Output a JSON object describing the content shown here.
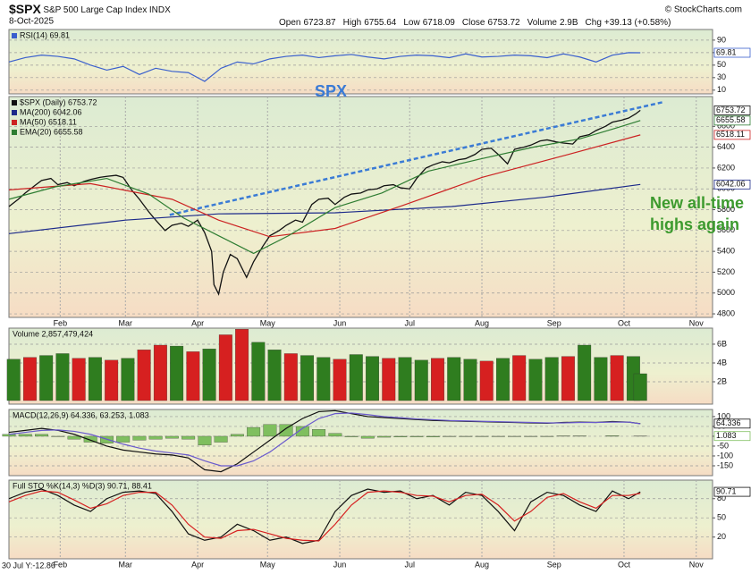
{
  "header": {
    "symbol": "$SPX",
    "name": "S&P 500 Large Cap Index",
    "exchange": "INDX",
    "date": "8-Oct-2025",
    "source": "© StockCharts.com",
    "quote": [
      {
        "label": "Open",
        "value": 6723.87
      },
      {
        "label": "High",
        "value": 6755.64
      },
      {
        "label": "Low",
        "value": 6718.09
      },
      {
        "label": "Close",
        "value": 6753.72
      },
      {
        "label": "Volume",
        "value": "2.9B"
      },
      {
        "label": "Chg",
        "value": "+39.13 (+0.58%)"
      }
    ],
    "footer": "30 Jul Y:-12.86"
  },
  "chart_data": [
    {
      "type": "line",
      "ylim": [
        4,
        107
      ],
      "yticks": [
        10,
        30,
        50,
        70,
        90
      ],
      "series": [
        {
          "name": "RSI(14) 69.81",
          "color": "#3a5fcd",
          "tag": true,
          "x": [
            10,
            17,
            24,
            31,
            38,
            45,
            52,
            59,
            66,
            73,
            80,
            87,
            94,
            101,
            108,
            115,
            122,
            129,
            136,
            143,
            150,
            157,
            164,
            171,
            178,
            185,
            192,
            199,
            206,
            213,
            220,
            227,
            234,
            241,
            248,
            255,
            262,
            269,
            276,
            281
          ],
          "values": [
            55,
            62,
            66,
            64,
            60,
            50,
            42,
            48,
            35,
            45,
            40,
            38,
            24,
            45,
            55,
            52,
            60,
            64,
            66,
            62,
            65,
            67,
            63,
            60,
            64,
            66,
            65,
            62,
            68,
            63,
            64,
            66,
            65,
            62,
            68,
            63,
            55,
            66,
            70,
            69.81
          ]
        }
      ]
    },
    {
      "type": "line",
      "ylim": [
        4766,
        6886
      ],
      "yticks": [
        4800,
        5000,
        5200,
        5400,
        5600,
        5800,
        6000,
        6200,
        6400,
        6600
      ],
      "xlim": [
        10,
        312
      ],
      "xticks": [
        {
          "value": 32,
          "label": "Feb"
        },
        {
          "value": 60,
          "label": "Mar"
        },
        {
          "value": 91,
          "label": "Apr"
        },
        {
          "value": 121,
          "label": "May"
        },
        {
          "value": 152,
          "label": "Jun"
        },
        {
          "value": 182,
          "label": "Jul"
        },
        {
          "value": 213,
          "label": "Aug"
        },
        {
          "value": 244,
          "label": "Sep"
        },
        {
          "value": 274,
          "label": "Oct"
        },
        {
          "value": 305,
          "label": "Nov"
        }
      ],
      "annotations": [
        "SPX",
        "New all-time",
        "highs again"
      ],
      "trendline": {
        "color": "#3a7bd5",
        "x": [
          79,
          291
        ],
        "values": [
          5750,
          6834
        ]
      },
      "series": [
        {
          "name": "$SPX (Daily) 6753.72",
          "color": "#111111",
          "tag": true,
          "x": [
            10,
            14,
            17,
            21,
            24,
            28,
            31,
            35,
            38,
            42,
            45,
            49,
            52,
            56,
            59,
            63,
            66,
            70,
            73,
            77,
            80,
            84,
            87,
            91,
            94,
            97,
            98,
            100,
            102,
            105,
            108,
            112,
            115,
            119,
            122,
            126,
            129,
            133,
            136,
            140,
            143,
            147,
            150,
            154,
            157,
            161,
            164,
            168,
            171,
            175,
            178,
            182,
            185,
            189,
            192,
            196,
            199,
            203,
            206,
            210,
            213,
            217,
            220,
            224,
            227,
            231,
            234,
            238,
            241,
            245,
            248,
            252,
            255,
            259,
            262,
            266,
            269,
            273,
            276,
            279,
            281
          ],
          "values": [
            5830,
            5900,
            5960,
            6030,
            6080,
            6100,
            6040,
            6060,
            6030,
            6070,
            6090,
            6110,
            6120,
            6130,
            6110,
            5980,
            5900,
            5780,
            5700,
            5600,
            5650,
            5670,
            5640,
            5700,
            5580,
            5400,
            5080,
            4990,
            5200,
            5370,
            5330,
            5150,
            5300,
            5450,
            5550,
            5600,
            5650,
            5700,
            5680,
            5850,
            5900,
            5910,
            5850,
            5920,
            5950,
            5960,
            5990,
            6000,
            6030,
            6040,
            6010,
            6000,
            6100,
            6200,
            6230,
            6260,
            6250,
            6280,
            6290,
            6330,
            6380,
            6390,
            6330,
            6240,
            6380,
            6400,
            6420,
            6460,
            6470,
            6450,
            6440,
            6430,
            6500,
            6520,
            6560,
            6600,
            6640,
            6660,
            6680,
            6720,
            6753.72
          ]
        },
        {
          "name": "MA(200) 6042.06",
          "color": "#1c2a8a",
          "tag": true,
          "x": [
            10,
            60,
            100,
            150,
            200,
            240,
            281
          ],
          "values": [
            5570,
            5700,
            5760,
            5770,
            5830,
            5920,
            6042.06
          ]
        },
        {
          "name": "MA(50) 6518.11",
          "color": "#cc2222",
          "tag": true,
          "x": [
            10,
            45,
            80,
            100,
            122,
            150,
            179,
            213,
            250,
            281
          ],
          "values": [
            5990,
            6050,
            5900,
            5700,
            5540,
            5620,
            5840,
            6110,
            6330,
            6518.11
          ]
        },
        {
          "name": "EMA(20) 6655.58",
          "color": "#2e7d32",
          "tag": true,
          "x": [
            10,
            30,
            52,
            70,
            85,
            100,
            115,
            130,
            150,
            170,
            190,
            213,
            235,
            255,
            270,
            281
          ],
          "values": [
            5900,
            6020,
            6100,
            5950,
            5720,
            5550,
            5380,
            5550,
            5820,
            5960,
            6170,
            6290,
            6400,
            6480,
            6580,
            6655.58
          ]
        }
      ]
    },
    {
      "type": "bar",
      "title": "Volume 2,857,479,424",
      "ylim": [
        -380000000,
        7710000000
      ],
      "yticks": [
        {
          "value": 2000000000,
          "label": "2B"
        },
        {
          "value": 4000000000,
          "label": "4B"
        },
        {
          "value": 6000000000,
          "label": "6B"
        }
      ],
      "series": [
        {
          "x": [
            12,
            19,
            26,
            33,
            40,
            47,
            54,
            61,
            68,
            75,
            82,
            89,
            96,
            103,
            110,
            117,
            124,
            131,
            138,
            145,
            152,
            159,
            166,
            173,
            180,
            187,
            194,
            201,
            208,
            215,
            222,
            229,
            236,
            243,
            250,
            257,
            264,
            271,
            278,
            281
          ],
          "values": [
            4400000000.0,
            4600000000.0,
            4800000000.0,
            5000000000.0,
            4500000000.0,
            4600000000.0,
            4300000000.0,
            4500000000.0,
            5400000000.0,
            5900000000.0,
            5800000000.0,
            5200000000.0,
            5500000000.0,
            7000000000.0,
            7600000000.0,
            6200000000.0,
            5400000000.0,
            5000000000.0,
            4800000000.0,
            4600000000.0,
            4400000000.0,
            4900000000.0,
            4700000000.0,
            4500000000.0,
            4600000000.0,
            4300000000.0,
            4500000000.0,
            4600000000.0,
            4400000000.0,
            4200000000.0,
            4500000000.0,
            4800000000.0,
            4400000000.0,
            4600000000.0,
            4700000000.0,
            5900000000.0,
            4600000000.0,
            4800000000.0,
            4700000000.0,
            2857479424
          ],
          "colors": [
            "#2f7d1f",
            "#d62020",
            "#2f7d1f",
            "#2f7d1f",
            "#d62020",
            "#2f7d1f",
            "#d62020",
            "#2f7d1f",
            "#d62020",
            "#d62020",
            "#2f7d1f",
            "#d62020",
            "#2f7d1f",
            "#d62020",
            "#d62020",
            "#2f7d1f",
            "#2f7d1f",
            "#d62020",
            "#2f7d1f",
            "#2f7d1f",
            "#d62020",
            "#2f7d1f",
            "#2f7d1f",
            "#d62020",
            "#2f7d1f",
            "#2f7d1f",
            "#d62020",
            "#2f7d1f",
            "#2f7d1f",
            "#d62020",
            "#2f7d1f",
            "#d62020",
            "#2f7d1f",
            "#2f7d1f",
            "#d62020",
            "#2f7d1f",
            "#2f7d1f",
            "#d62020",
            "#2f7d1f",
            "#2f7d1f"
          ]
        }
      ]
    },
    {
      "type": "line",
      "title": "MACD(12,26,9) 64.336, 63.253, 1.083",
      "ylim": [
        -200,
        136
      ],
      "yticks": [
        -150,
        -100,
        -50,
        0,
        50,
        100
      ],
      "series": [
        {
          "type": "bar",
          "color": "#7fbf5f",
          "tag": true,
          "x": [
            10,
            17,
            24,
            31,
            38,
            45,
            52,
            59,
            66,
            73,
            80,
            87,
            94,
            101,
            108,
            115,
            122,
            129,
            136,
            143,
            150,
            157,
            164,
            171,
            178,
            185,
            192,
            199,
            206,
            213,
            220,
            227,
            234,
            241,
            248,
            255,
            262,
            269,
            276,
            281
          ],
          "values": [
            10,
            10,
            10,
            -2,
            -15,
            -30,
            -35,
            -30,
            -20,
            -15,
            -10,
            -15,
            -45,
            -30,
            10,
            45,
            60,
            60,
            50,
            35,
            15,
            -3,
            -10,
            -5,
            -4,
            -3,
            -4,
            -2,
            -2,
            -2,
            -2,
            -2,
            -2,
            -2,
            2,
            2,
            0,
            3,
            0,
            1.083
          ]
        },
        {
          "color": "#111111",
          "tag": true,
          "x": [
            10,
            17,
            24,
            31,
            38,
            45,
            52,
            59,
            66,
            73,
            80,
            87,
            94,
            101,
            108,
            115,
            122,
            129,
            136,
            143,
            150,
            157,
            164,
            171,
            178,
            185,
            192,
            199,
            206,
            213,
            220,
            227,
            234,
            241,
            248,
            255,
            262,
            269,
            276,
            281
          ],
          "values": [
            20,
            30,
            40,
            30,
            10,
            -20,
            -50,
            -70,
            -80,
            -90,
            -95,
            -110,
            -170,
            -180,
            -140,
            -80,
            -20,
            40,
            90,
            125,
            130,
            115,
            100,
            95,
            90,
            85,
            80,
            78,
            76,
            74,
            72,
            70,
            68,
            66,
            70,
            72,
            70,
            75,
            72,
            64.336
          ]
        },
        {
          "color": "#6a5acd",
          "x": [
            10,
            17,
            24,
            31,
            38,
            45,
            52,
            59,
            66,
            73,
            80,
            87,
            94,
            101,
            108,
            115,
            122,
            129,
            136,
            143,
            150,
            157,
            164,
            171,
            178,
            185,
            192,
            199,
            206,
            213,
            220,
            227,
            234,
            241,
            248,
            255,
            262,
            269,
            276,
            281
          ],
          "values": [
            10,
            20,
            30,
            32,
            25,
            10,
            -15,
            -40,
            -60,
            -75,
            -85,
            -95,
            -125,
            -150,
            -150,
            -125,
            -80,
            -20,
            40,
            90,
            115,
            118,
            110,
            100,
            94,
            88,
            84,
            80,
            78,
            76,
            74,
            72,
            70,
            68,
            68,
            70,
            70,
            72,
            72,
            63.253
          ]
        }
      ]
    },
    {
      "type": "line",
      "title": "Full STO %K(14,3) %D(3) 90.71, 88.41",
      "ylim": [
        -14,
        109
      ],
      "yticks": [
        20,
        50,
        80
      ],
      "xlim": [
        10,
        312
      ],
      "xticks": [
        {
          "value": 32,
          "label": "Feb"
        },
        {
          "value": 60,
          "label": "Mar"
        },
        {
          "value": 91,
          "label": "Apr"
        },
        {
          "value": 121,
          "label": "May"
        },
        {
          "value": 152,
          "label": "Jun"
        },
        {
          "value": 182,
          "label": "Jul"
        },
        {
          "value": 213,
          "label": "Aug"
        },
        {
          "value": 244,
          "label": "Sep"
        },
        {
          "value": 274,
          "label": "Oct"
        },
        {
          "value": 305,
          "label": "Nov"
        }
      ],
      "series": [
        {
          "color": "#111111",
          "tag": true,
          "x": [
            10,
            17,
            24,
            31,
            38,
            45,
            52,
            59,
            66,
            73,
            80,
            87,
            94,
            101,
            108,
            115,
            122,
            129,
            136,
            143,
            150,
            157,
            164,
            171,
            178,
            185,
            192,
            199,
            206,
            213,
            220,
            227,
            234,
            241,
            248,
            255,
            262,
            269,
            276,
            281
          ],
          "values": [
            80,
            90,
            95,
            85,
            70,
            60,
            80,
            90,
            92,
            88,
            60,
            25,
            15,
            20,
            40,
            30,
            15,
            20,
            10,
            15,
            60,
            85,
            95,
            90,
            92,
            80,
            85,
            70,
            90,
            85,
            60,
            30,
            75,
            90,
            85,
            70,
            60,
            92,
            80,
            90.71
          ]
        },
        {
          "color": "#d62020",
          "x": [
            10,
            17,
            24,
            31,
            38,
            45,
            52,
            59,
            66,
            73,
            80,
            87,
            94,
            101,
            108,
            115,
            122,
            129,
            136,
            143,
            150,
            157,
            164,
            171,
            178,
            185,
            192,
            199,
            206,
            213,
            220,
            227,
            234,
            241,
            248,
            255,
            262,
            269,
            276,
            281
          ],
          "values": [
            75,
            85,
            92,
            90,
            78,
            65,
            72,
            85,
            90,
            90,
            70,
            40,
            20,
            18,
            30,
            32,
            25,
            18,
            15,
            14,
            40,
            70,
            90,
            92,
            90,
            85,
            84,
            75,
            85,
            87,
            70,
            45,
            60,
            82,
            88,
            75,
            65,
            85,
            85,
            88.41
          ]
        }
      ]
    }
  ]
}
